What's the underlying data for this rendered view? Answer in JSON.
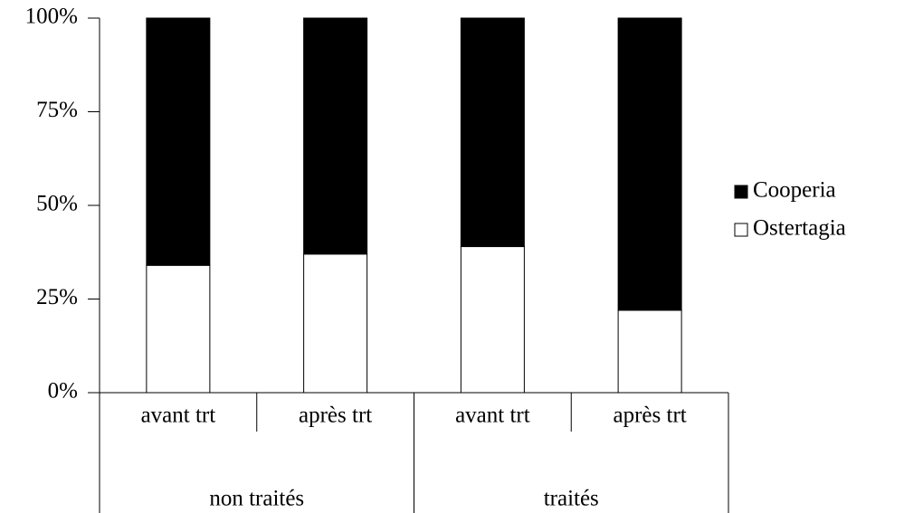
{
  "chart_data": {
    "type": "stacked_bar_100",
    "categories": [
      "avant trt",
      "après trt",
      "avant trt",
      "après trt"
    ],
    "groups": [
      "non traités",
      "traités"
    ],
    "series": [
      {
        "name": "Ostertagia",
        "color": "#ffffff",
        "values": [
          34,
          37,
          39,
          22
        ]
      },
      {
        "name": "Cooperia",
        "color": "#000000",
        "values": [
          66,
          63,
          61,
          78
        ]
      }
    ],
    "ylim": [
      0,
      100
    ],
    "yticks": [
      {
        "value": 0,
        "label": "0%"
      },
      {
        "value": 25,
        "label": "25%"
      },
      {
        "value": 50,
        "label": "50%"
      },
      {
        "value": 75,
        "label": "75%"
      },
      {
        "value": 100,
        "label": "100%"
      }
    ],
    "legend": "right"
  }
}
